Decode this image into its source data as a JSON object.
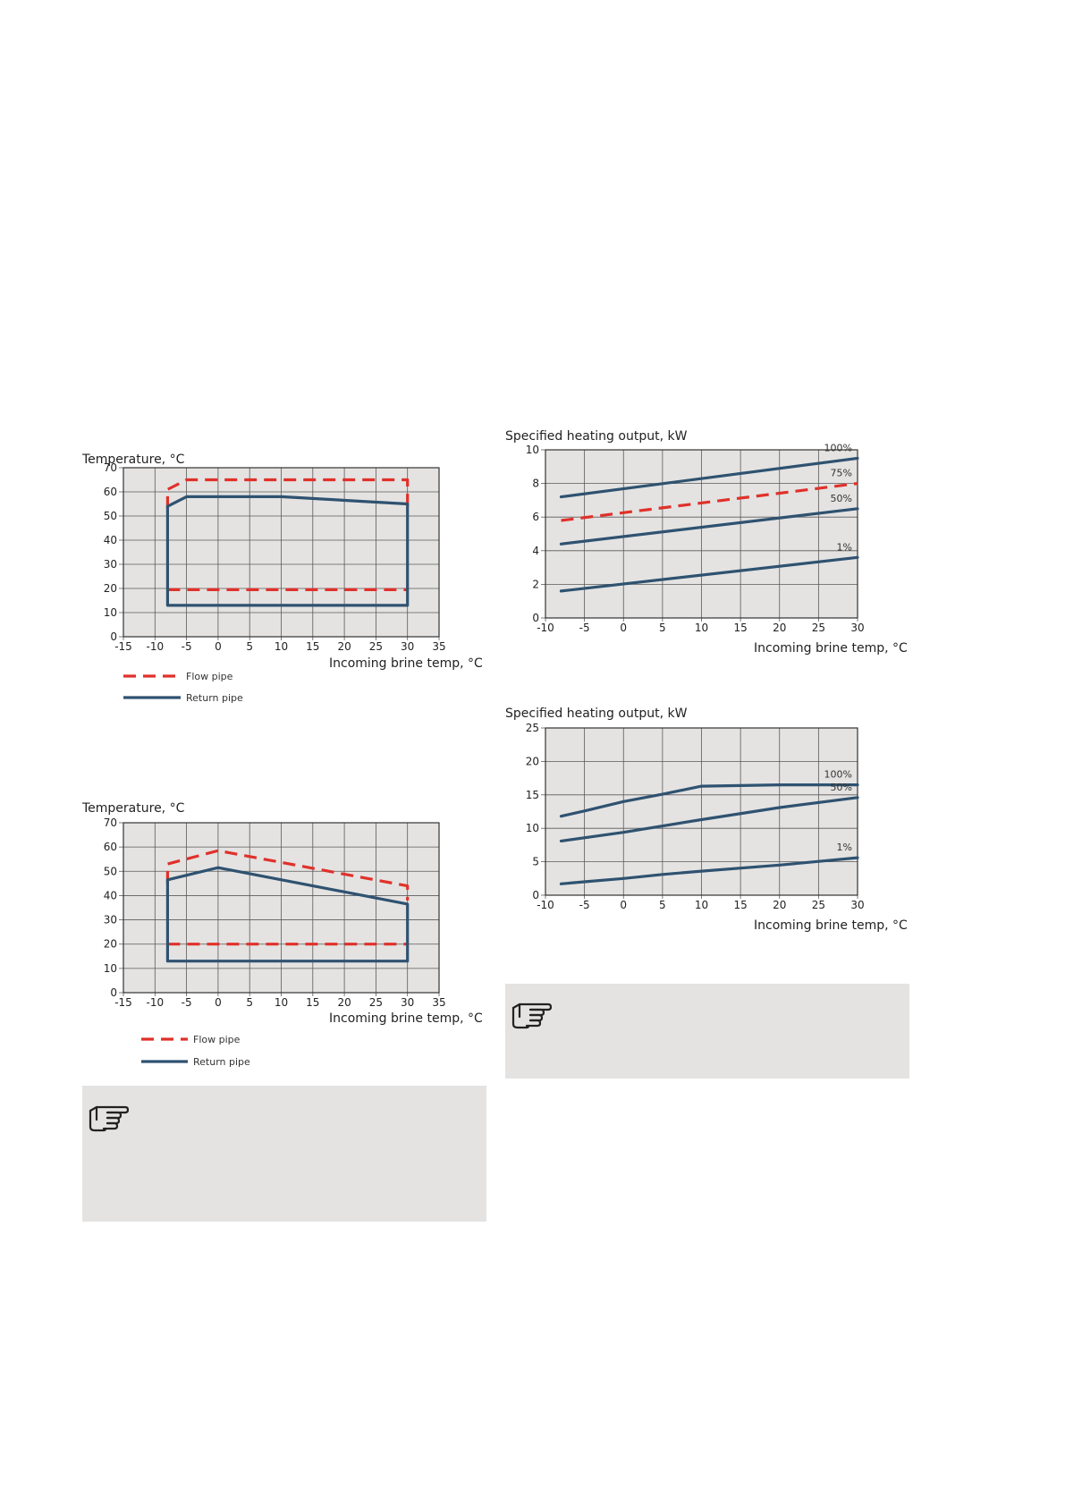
{
  "colors": {
    "flow": "#e0312a",
    "return": "#2f5270",
    "grid": "#5a5a5a",
    "plot_bg": "#e4e3e2",
    "note_bg": "#e4e3e2"
  },
  "note_icons": [
    "pointing-hand-icon",
    "pointing-hand-icon"
  ],
  "chart_data": [
    {
      "type": "line",
      "ylabel": "Temperature, °C",
      "xlabel": "Incoming brine temp, °C",
      "xlim": [
        -15,
        35
      ],
      "ylim": [
        0,
        70
      ],
      "xticks": [
        "-15",
        "-10",
        "-5",
        "0",
        "5",
        "10",
        "15",
        "20",
        "25",
        "30",
        "35"
      ],
      "yticks": [
        "0",
        "10",
        "20",
        "30",
        "40",
        "50",
        "60",
        "70"
      ],
      "grid": true,
      "legend_position": "bottom-left",
      "series": [
        {
          "name": "Flow pipe",
          "style": "dashed",
          "x": [
            -8,
            -8,
            -5,
            30,
            30
          ],
          "y": [
            53,
            61,
            65,
            65,
            53
          ]
        },
        {
          "name": "Flow pipe",
          "style": "dashed",
          "legend": false,
          "x": [
            -8,
            30
          ],
          "y": [
            19.5,
            19.5
          ]
        },
        {
          "name": "Return pipe",
          "style": "solid",
          "x": [
            -8,
            -8,
            -5,
            10,
            30,
            30,
            -8
          ],
          "y": [
            13,
            54,
            58,
            58,
            55,
            13,
            13
          ]
        }
      ]
    },
    {
      "type": "line",
      "ylabel": "Temperature, °C",
      "xlabel": "Incoming brine temp, °C",
      "xlim": [
        -15,
        35
      ],
      "ylim": [
        0,
        70
      ],
      "xticks": [
        "-15",
        "-10",
        "-5",
        "0",
        "5",
        "10",
        "15",
        "20",
        "25",
        "30",
        "35"
      ],
      "yticks": [
        "0",
        "10",
        "20",
        "30",
        "40",
        "50",
        "60",
        "70"
      ],
      "grid": true,
      "legend_position": "bottom-left",
      "series": [
        {
          "name": "Flow pipe",
          "style": "dashed",
          "x": [
            -8,
            -8,
            0,
            30,
            30
          ],
          "y": [
            45,
            53,
            58.5,
            44,
            38
          ]
        },
        {
          "name": "Flow pipe",
          "style": "dashed",
          "legend": false,
          "x": [
            -8,
            30
          ],
          "y": [
            20,
            20
          ]
        },
        {
          "name": "Return pipe",
          "style": "solid",
          "x": [
            -8,
            -8,
            0,
            30,
            30,
            -8
          ],
          "y": [
            13,
            46.5,
            51.5,
            36.5,
            13,
            13
          ]
        }
      ]
    },
    {
      "type": "line",
      "ylabel": "Specified heating output, kW",
      "xlabel": "Incoming brine temp, °C",
      "xlim": [
        -10,
        30
      ],
      "ylim": [
        0,
        10
      ],
      "xticks": [
        "-10",
        "-5",
        "0",
        "5",
        "10",
        "15",
        "20",
        "25",
        "30"
      ],
      "yticks": [
        "0",
        "2",
        "4",
        "6",
        "8",
        "10"
      ],
      "grid": true,
      "series": [
        {
          "name": "100%",
          "style": "solid",
          "x": [
            -8,
            30
          ],
          "y": [
            7.2,
            9.5
          ]
        },
        {
          "name": "75%",
          "style": "dashed",
          "x": [
            -8,
            30
          ],
          "y": [
            5.8,
            8.0
          ]
        },
        {
          "name": "50%",
          "style": "solid",
          "x": [
            -8,
            30
          ],
          "y": [
            4.4,
            6.5
          ]
        },
        {
          "name": "1%",
          "style": "solid",
          "x": [
            -8,
            30
          ],
          "y": [
            1.6,
            3.6
          ]
        }
      ]
    },
    {
      "type": "line",
      "ylabel": "Specified heating output, kW",
      "xlabel": "Incoming brine temp, °C",
      "xlim": [
        -10,
        30
      ],
      "ylim": [
        0,
        25
      ],
      "xticks": [
        "-10",
        "-5",
        "0",
        "5",
        "10",
        "15",
        "20",
        "25",
        "30"
      ],
      "yticks": [
        "0",
        "5",
        "10",
        "15",
        "20",
        "25"
      ],
      "grid": true,
      "series": [
        {
          "name": "100%",
          "style": "solid",
          "x": [
            -8,
            -5,
            0,
            5,
            10,
            20,
            30
          ],
          "y": [
            11.8,
            12.6,
            14.0,
            15.1,
            16.3,
            16.5,
            16.5
          ]
        },
        {
          "name": "50%",
          "style": "solid",
          "x": [
            -8,
            0,
            10,
            20,
            30
          ],
          "y": [
            8.1,
            9.4,
            11.3,
            13.1,
            14.6
          ]
        },
        {
          "name": "1%",
          "style": "solid",
          "x": [
            -8,
            -5,
            0,
            5,
            10,
            20,
            30
          ],
          "y": [
            1.7,
            2.0,
            2.5,
            3.1,
            3.6,
            4.5,
            5.6
          ]
        }
      ]
    }
  ]
}
